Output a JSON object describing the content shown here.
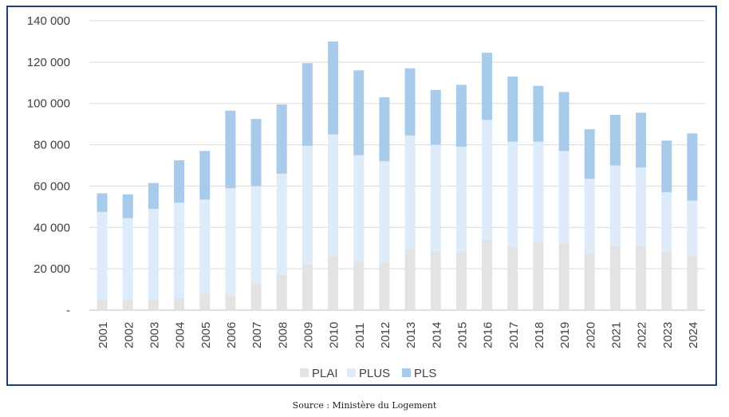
{
  "chart_data": {
    "type": "bar",
    "stacked": true,
    "categories": [
      "2001",
      "2002",
      "2003",
      "2004",
      "2005",
      "2006",
      "2007",
      "2008",
      "2009",
      "2010",
      "2011",
      "2012",
      "2013",
      "2014",
      "2015",
      "2016",
      "2017",
      "2018",
      "2019",
      "2020",
      "2021",
      "2022",
      "2023",
      "2024"
    ],
    "series": [
      {
        "name": "PLAI",
        "color": "#e3e3e3",
        "values": [
          5000,
          5000,
          5000,
          6000,
          8000,
          7000,
          13000,
          17000,
          22000,
          26000,
          23500,
          23000,
          29500,
          28500,
          28000,
          34000,
          30500,
          33000,
          32000,
          27500,
          31000,
          31000,
          28000,
          26000
        ]
      },
      {
        "name": "PLUS",
        "color": "#deebf8",
        "values": [
          42500,
          39500,
          44000,
          46000,
          45500,
          52000,
          47000,
          49000,
          57500,
          59000,
          51500,
          49000,
          55000,
          51500,
          51000,
          58000,
          51000,
          48500,
          45000,
          36000,
          39000,
          38000,
          29000,
          27000
        ]
      },
      {
        "name": "PLS",
        "color": "#a8cbeb",
        "values": [
          9000,
          11500,
          12500,
          20500,
          23500,
          37500,
          32500,
          33500,
          40000,
          45000,
          41000,
          31000,
          32500,
          26500,
          30000,
          32500,
          31500,
          27000,
          28500,
          24000,
          24500,
          26500,
          25000,
          32500
        ]
      }
    ],
    "ylim": [
      0,
      140000
    ],
    "yticks": [
      0,
      20000,
      40000,
      60000,
      80000,
      100000,
      120000,
      140000
    ],
    "ytick_labels": [
      "-",
      "20 000",
      "40 000",
      "60 000",
      "80 000",
      "100 000",
      "120 000",
      "140 000"
    ],
    "legend": [
      "PLAI",
      "PLUS",
      "PLS"
    ],
    "legend_position": "bottom",
    "grid": true,
    "title": "",
    "xlabel": "",
    "ylabel": ""
  },
  "source": "Source : Ministère du Logement"
}
